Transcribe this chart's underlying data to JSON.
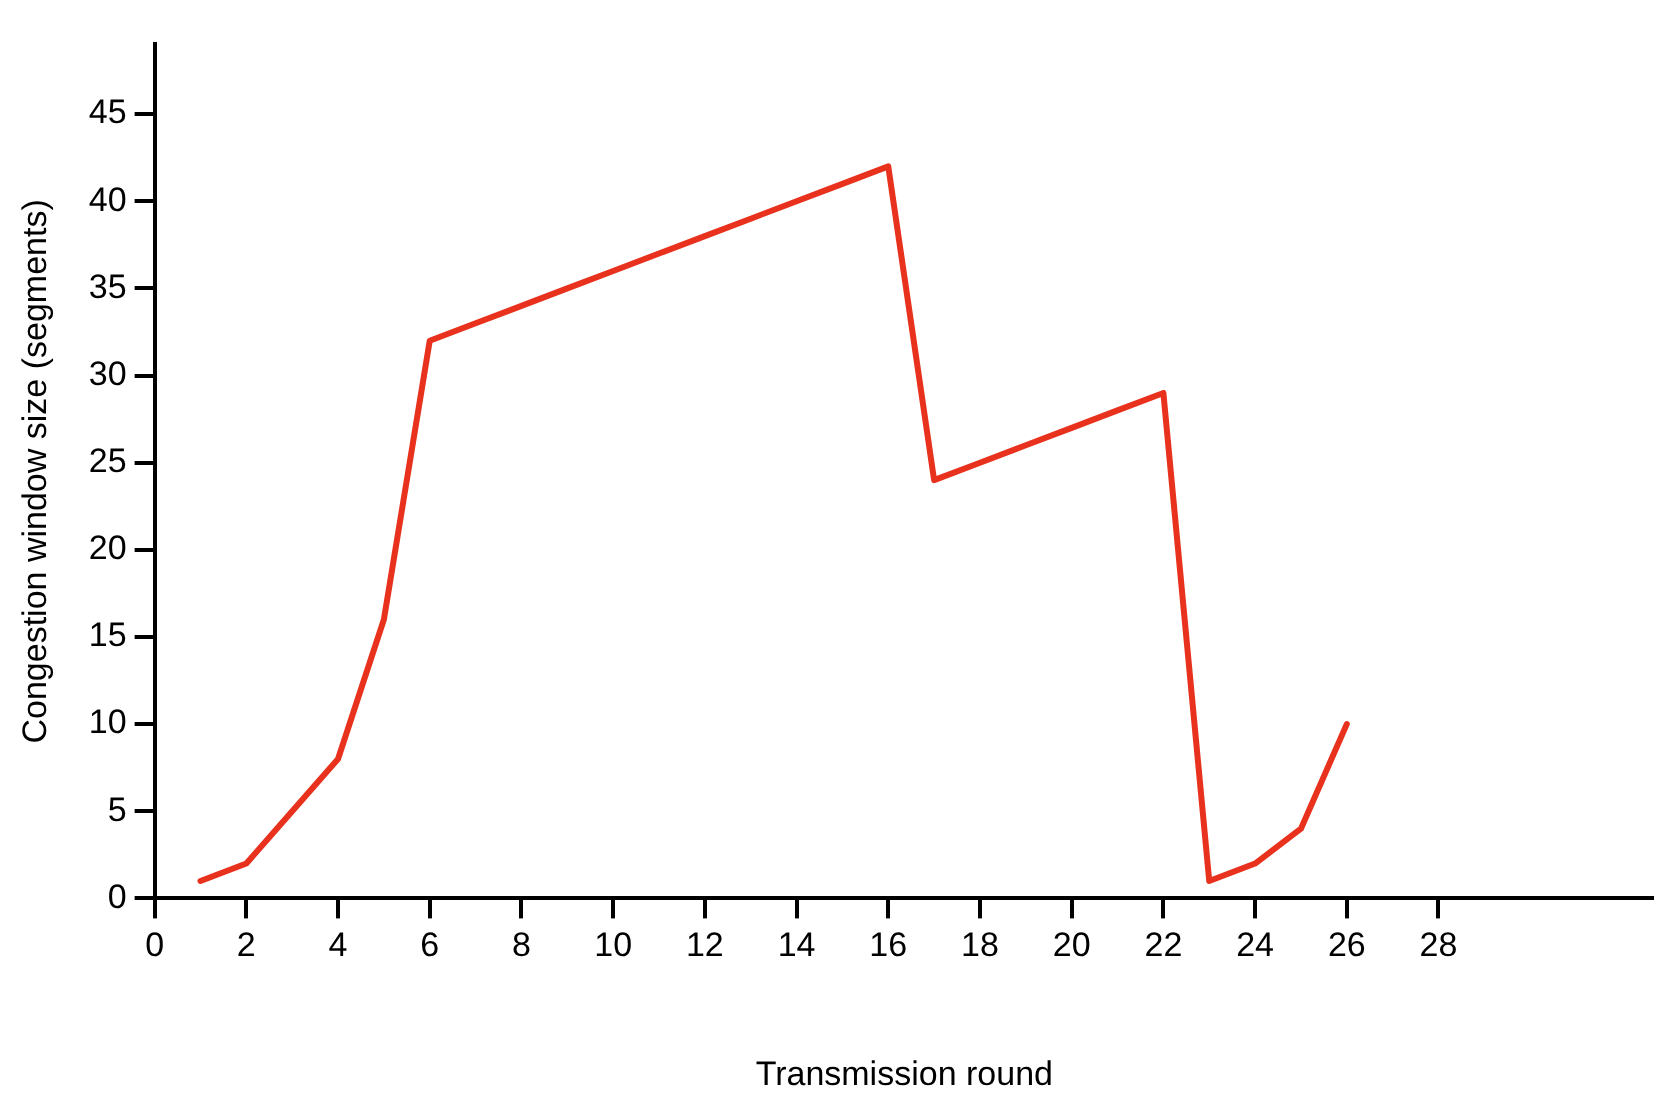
{
  "chart_data": {
    "type": "line",
    "xlabel": "Transmission round",
    "ylabel": "Congestion window size (segments)",
    "x": [
      1,
      2,
      3,
      4,
      5,
      6,
      7,
      8,
      9,
      10,
      11,
      12,
      13,
      14,
      15,
      16,
      17,
      18,
      19,
      20,
      21,
      22,
      23,
      24,
      25,
      26
    ],
    "series": [
      {
        "color": "#e8321e",
        "values": [
          1,
          2,
          5,
          8,
          16,
          32,
          33,
          34,
          35,
          36,
          37,
          38,
          39,
          40,
          41,
          42,
          24,
          25,
          26,
          27,
          28,
          29,
          1,
          2,
          4,
          10
        ]
      }
    ],
    "xlim": [
      0,
      32.7
    ],
    "xticks": [
      0,
      2,
      4,
      6,
      8,
      10,
      12,
      14,
      16,
      18,
      20,
      22,
      24,
      26,
      28
    ],
    "ylim": [
      0,
      49
    ],
    "yticks": [
      0,
      5,
      10,
      15,
      20,
      25,
      30,
      35,
      40,
      45
    ],
    "grid": false,
    "legend": false,
    "marker": "none",
    "line_style": "solid"
  }
}
